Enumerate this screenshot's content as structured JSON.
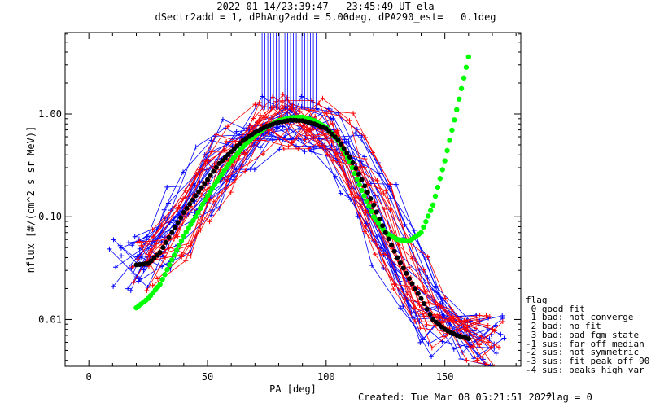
{
  "title_lines": [
    "2022-01-14/23:39:47 - 23:45:49 UT ela",
    "dSectr2add = 1, dPhAng2add = 5.00deg, dPA290_est=   0.1deg"
  ],
  "footer": {
    "created": "Created: Tue Mar 08 05:21:51 2022",
    "flag": "flag = 0"
  },
  "flag_legend": {
    "title": "flag",
    "items": [
      " 0 good fit",
      " 1 bad: not converge",
      " 2 bad: no fit",
      " 3 bad: bad fgm state",
      "-1 sus: far off median",
      "-2 sus: not symmetric",
      "-3 sus: fit peak off 90",
      "-4 sus: peaks high var"
    ]
  },
  "colors": {
    "red_traces": "#ff0000",
    "blue_traces": "#0000ff",
    "median_fit": "#000000",
    "model_fit": "#00ff00",
    "axes": "#000000"
  },
  "chart_data": {
    "type": "line",
    "xlabel": "PA [deg]",
    "ylabel": "nflux [#/(cm^2 s sr MeV)]",
    "xlim": [
      -10,
      182
    ],
    "ylim": [
      0.0035,
      6.2
    ],
    "yscale": "log",
    "xticks": [
      0,
      50,
      100,
      150
    ],
    "yticks": [
      {
        "value": 0.01,
        "label": "0.01"
      },
      {
        "value": 0.1,
        "label": "0.10"
      },
      {
        "value": 1.0,
        "label": "1.00"
      }
    ],
    "series": [
      {
        "style": "black-dots",
        "x": [
          20,
          25,
          30,
          35,
          40,
          45,
          50,
          55,
          60,
          65,
          70,
          75,
          80,
          85,
          90,
          95,
          100,
          105,
          110,
          115,
          120,
          125,
          130,
          135,
          140,
          145,
          150,
          155,
          160
        ],
        "y": [
          0.034,
          0.035,
          0.045,
          0.07,
          0.11,
          0.16,
          0.23,
          0.33,
          0.43,
          0.55,
          0.66,
          0.76,
          0.83,
          0.87,
          0.86,
          0.8,
          0.72,
          0.56,
          0.38,
          0.23,
          0.13,
          0.07,
          0.04,
          0.025,
          0.016,
          0.01,
          0.008,
          0.007,
          0.0065
        ]
      },
      {
        "style": "green-dots",
        "x": [
          20,
          25,
          30,
          35,
          40,
          45,
          50,
          55,
          60,
          65,
          70,
          75,
          80,
          85,
          90,
          95,
          100,
          105,
          110,
          115,
          120,
          125,
          130,
          135,
          140,
          145,
          150,
          155,
          160
        ],
        "y": [
          0.013,
          0.016,
          0.022,
          0.038,
          0.065,
          0.1,
          0.16,
          0.24,
          0.35,
          0.48,
          0.62,
          0.75,
          0.86,
          0.92,
          0.93,
          0.86,
          0.74,
          0.55,
          0.34,
          0.18,
          0.1,
          0.07,
          0.06,
          0.058,
          0.07,
          0.13,
          0.35,
          1.1,
          3.6
        ]
      }
    ]
  }
}
